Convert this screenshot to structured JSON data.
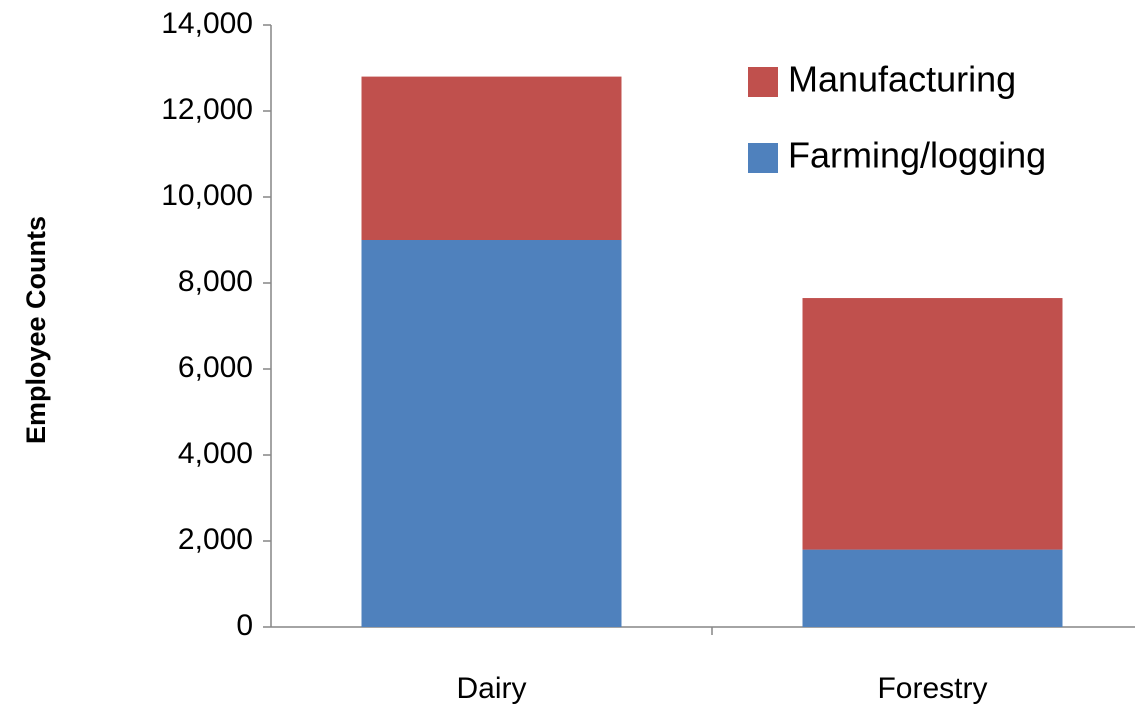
{
  "chart_data": {
    "type": "stacked_bar",
    "y_label": "Employee Counts",
    "categories": [
      "Dairy",
      "Forestry"
    ],
    "series": [
      {
        "name": "Farming/logging",
        "color": "#4f81bd",
        "values": [
          9000,
          1800
        ]
      },
      {
        "name": "Manufacturing",
        "color": "#c0504d",
        "values": [
          3800,
          5850
        ]
      }
    ],
    "ylim": [
      0,
      14000
    ],
    "yticks": [
      0,
      {
        "value": 2000,
        "label": "2,000"
      },
      {
        "value": 4000,
        "label": "4,000"
      },
      {
        "value": 6000,
        "label": "6,000"
      },
      {
        "value": 8000,
        "label": "8,000"
      },
      {
        "value": 10000,
        "label": "10,000"
      },
      {
        "value": 12000,
        "label": "12,000"
      },
      {
        "value": 14000,
        "label": "14,000"
      }
    ],
    "legend": "top-right"
  }
}
